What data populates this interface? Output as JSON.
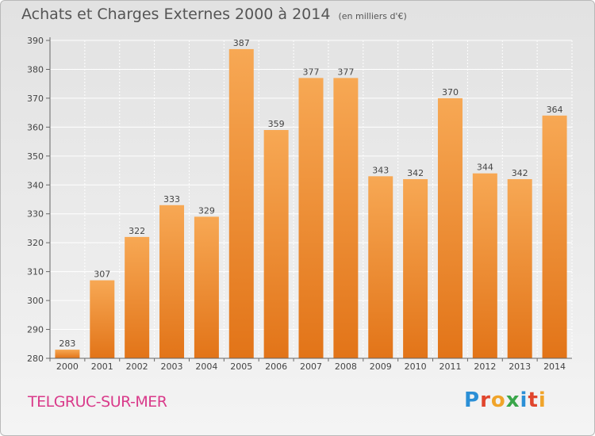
{
  "title": "Achats et Charges Externes 2000 à 2014",
  "subtitle": "(en milliers d'€)",
  "commune": "TELGRUC-SUR-MER",
  "logo": {
    "letters": [
      "P",
      "r",
      "o",
      "x",
      "i",
      "t",
      "i"
    ],
    "colors": [
      "#2b8fd6",
      "#e0452d",
      "#f0a42a",
      "#3aa64a",
      "#2b8fd6",
      "#e0452d",
      "#f0a42a"
    ]
  },
  "colors": {
    "bar": "#f08b2c",
    "bar_light": "#f7b266",
    "grid": "#ffffff",
    "axis": "#666666"
  },
  "chart_data": {
    "type": "bar",
    "title": "Achats et Charges Externes 2000 à 2014",
    "subtitle": "(en milliers d'€)",
    "categories": [
      "2000",
      "2001",
      "2002",
      "2003",
      "2004",
      "2005",
      "2006",
      "2007",
      "2008",
      "2009",
      "2010",
      "2011",
      "2012",
      "2013",
      "2014"
    ],
    "values": [
      283,
      307,
      322,
      333,
      329,
      387,
      359,
      377,
      377,
      343,
      342,
      370,
      344,
      342,
      364
    ],
    "ylim": [
      280,
      390
    ],
    "yticks": [
      280,
      290,
      300,
      310,
      320,
      330,
      340,
      350,
      360,
      370,
      380,
      390
    ],
    "grid": true,
    "xlabel": "",
    "ylabel": ""
  }
}
